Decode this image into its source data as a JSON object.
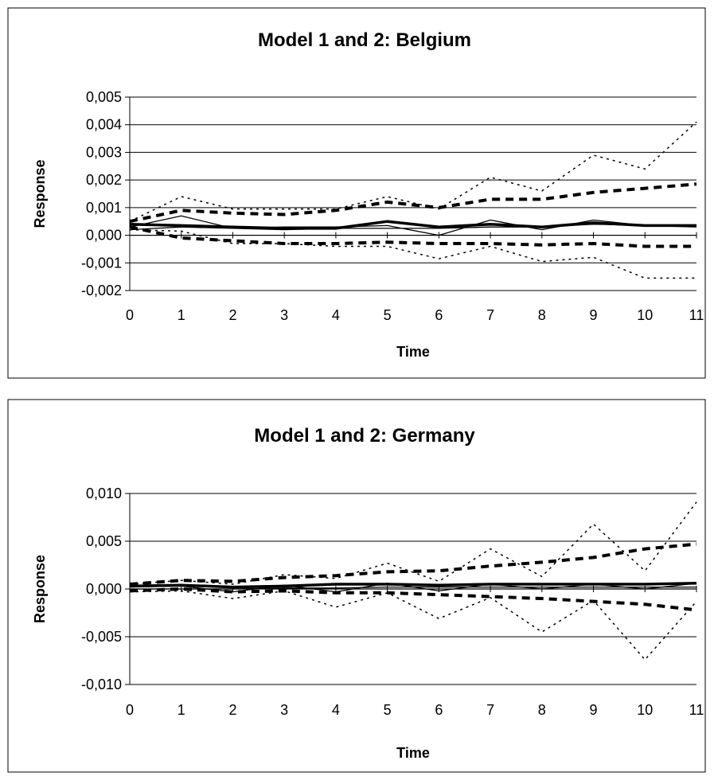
{
  "chart_data": [
    {
      "type": "line",
      "title": "Model 1 and 2: Belgium",
      "xlabel": "Time",
      "ylabel": "Response",
      "ylim": [
        -0.002,
        0.005
      ],
      "xlim": [
        0,
        11
      ],
      "grid": true,
      "legend": "none",
      "x_ticks": [
        "0",
        "1",
        "2",
        "3",
        "4",
        "5",
        "6",
        "7",
        "8",
        "9",
        "10",
        "11"
      ],
      "y_ticks": [
        {
          "value": 0.005,
          "label": "0,005"
        },
        {
          "value": 0.004,
          "label": "0,004"
        },
        {
          "value": 0.003,
          "label": "0,003"
        },
        {
          "value": 0.002,
          "label": "0,002"
        },
        {
          "value": 0.001,
          "label": "0,001"
        },
        {
          "value": 0.0,
          "label": "0,000"
        },
        {
          "value": -0.001,
          "label": "-0,001"
        },
        {
          "value": -0.002,
          "label": "-0,002"
        }
      ],
      "x": [
        0,
        1,
        2,
        3,
        4,
        5,
        6,
        7,
        8,
        9,
        10,
        11
      ],
      "series": [
        {
          "style": "thick",
          "values": [
            0.0004,
            0.00035,
            0.0003,
            0.00025,
            0.00025,
            0.0005,
            0.0003,
            0.0004,
            0.0003,
            0.00045,
            0.00035,
            0.00035
          ]
        },
        {
          "style": "thin",
          "values": [
            0.0003,
            0.0007,
            0.00025,
            0.0003,
            0.0003,
            0.00035,
            0.0,
            0.00055,
            0.0002,
            0.00055,
            0.00035,
            0.0003
          ]
        },
        {
          "style": "thin",
          "values": [
            0.0002,
            0.0003,
            0.00025,
            0.0002,
            0.00025,
            0.00025,
            0.00025,
            0.0003,
            0.0003,
            0.0004,
            0.00035,
            0.00035
          ]
        },
        {
          "style": "dash",
          "values": [
            0.0005,
            0.0009,
            0.0008,
            0.00075,
            0.0009,
            0.0012,
            0.001,
            0.0013,
            0.0013,
            0.00155,
            0.0017,
            0.00185
          ]
        },
        {
          "style": "dash",
          "values": [
            0.0003,
            -0.0001,
            -0.0002,
            -0.0003,
            -0.0003,
            -0.00025,
            -0.0003,
            -0.0003,
            -0.00035,
            -0.0003,
            -0.0004,
            -0.0004
          ]
        },
        {
          "style": "dot",
          "values": [
            0.0005,
            0.0014,
            0.00095,
            0.00095,
            0.00095,
            0.0014,
            0.00095,
            0.0021,
            0.0016,
            0.0029,
            0.0024,
            0.0041
          ]
        },
        {
          "style": "dot",
          "values": [
            0.0002,
            0.00015,
            -0.0003,
            -0.0003,
            -0.0004,
            -0.0004,
            -0.00085,
            -0.0004,
            -0.00095,
            -0.0008,
            -0.00155,
            -0.00155
          ]
        }
      ]
    },
    {
      "type": "line",
      "title": "Model 1 and 2: Germany",
      "xlabel": "Time",
      "ylabel": "Response",
      "ylim": [
        -0.01,
        0.01
      ],
      "xlim": [
        0,
        11
      ],
      "grid": true,
      "legend": "none",
      "x_ticks": [
        "0",
        "1",
        "2",
        "3",
        "4",
        "5",
        "6",
        "7",
        "8",
        "9",
        "10",
        "11"
      ],
      "y_ticks": [
        {
          "value": 0.01,
          "label": "0,010"
        },
        {
          "value": 0.005,
          "label": "0,005"
        },
        {
          "value": 0.0,
          "label": "0,000"
        },
        {
          "value": -0.005,
          "label": "-0,005"
        },
        {
          "value": -0.01,
          "label": "-0,010"
        }
      ],
      "x": [
        0,
        1,
        2,
        3,
        4,
        5,
        6,
        7,
        8,
        9,
        10,
        11
      ],
      "series": [
        {
          "style": "thick",
          "values": [
            0.0003,
            0.0004,
            0.0002,
            0.0003,
            0.0005,
            0.0005,
            0.0004,
            0.0005,
            0.0005,
            0.0005,
            0.0005,
            0.0006
          ]
        },
        {
          "style": "thin",
          "values": [
            0.0002,
            0.0003,
            -0.0003,
            0.0004,
            -0.0003,
            0.0006,
            -0.0002,
            0.0005,
            0.0,
            0.0005,
            0.0,
            0.0006
          ]
        },
        {
          "style": "thin",
          "values": [
            0.0,
            0.0,
            0.0,
            0.0001,
            0.0001,
            0.0002,
            0.0002,
            0.0002,
            0.0002,
            0.0002,
            0.0002,
            0.0002
          ]
        },
        {
          "style": "dash",
          "values": [
            0.0005,
            0.0009,
            0.0008,
            0.0012,
            0.0014,
            0.0018,
            0.0019,
            0.0024,
            0.0028,
            0.0033,
            0.0042,
            0.0047
          ]
        },
        {
          "style": "dash",
          "values": [
            -0.0002,
            0.0,
            -0.0003,
            -0.0002,
            -0.0004,
            -0.0004,
            -0.0006,
            -0.0008,
            -0.001,
            -0.0013,
            -0.0016,
            -0.0022
          ]
        },
        {
          "style": "dot",
          "values": [
            0.0005,
            0.0009,
            0.0005,
            0.0015,
            0.0011,
            0.0027,
            0.0008,
            0.0042,
            0.0013,
            0.0068,
            0.0019,
            0.0091
          ]
        },
        {
          "style": "dot",
          "values": [
            -0.0003,
            -0.0002,
            -0.001,
            -0.0002,
            -0.0019,
            -0.0004,
            -0.0031,
            -0.0009,
            -0.0045,
            -0.0012,
            -0.0074,
            -0.0013
          ]
        }
      ]
    }
  ]
}
